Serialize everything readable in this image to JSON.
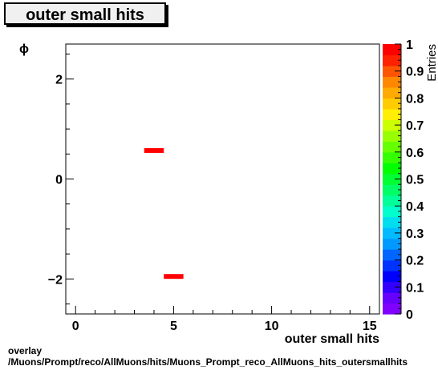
{
  "chart_data": {
    "type": "heatmap",
    "title": "outer small hits",
    "xlabel": "outer small hits",
    "ylabel": "ϕ",
    "zlabel": "Entries",
    "xlim": [
      -0.5,
      15.5
    ],
    "ylim": [
      -2.7,
      2.7
    ],
    "zlim": [
      0,
      1
    ],
    "x_ticks": [
      0,
      5,
      10,
      15
    ],
    "y_ticks": [
      -2,
      0,
      2
    ],
    "z_ticks": [
      "0",
      "0.1",
      "0.2",
      "0.3",
      "0.4",
      "0.5",
      "0.6",
      "0.7",
      "0.8",
      "0.9",
      "1"
    ],
    "x_tick_labels": [
      "0",
      "5",
      "10",
      "15"
    ],
    "y_tick_labels": [
      "−2",
      "0",
      "2"
    ],
    "cells": [
      {
        "x0": 3.5,
        "x1": 4.5,
        "y": 0.57,
        "value": 1
      },
      {
        "x0": 4.5,
        "x1": 5.5,
        "y": -1.95,
        "value": 1
      }
    ]
  },
  "footer": {
    "line1": "overlay",
    "line2": "/Muons/Prompt/reco/AllMuons/hits/Muons_Prompt_reco_AllMuons_hits_outersmallhits"
  }
}
